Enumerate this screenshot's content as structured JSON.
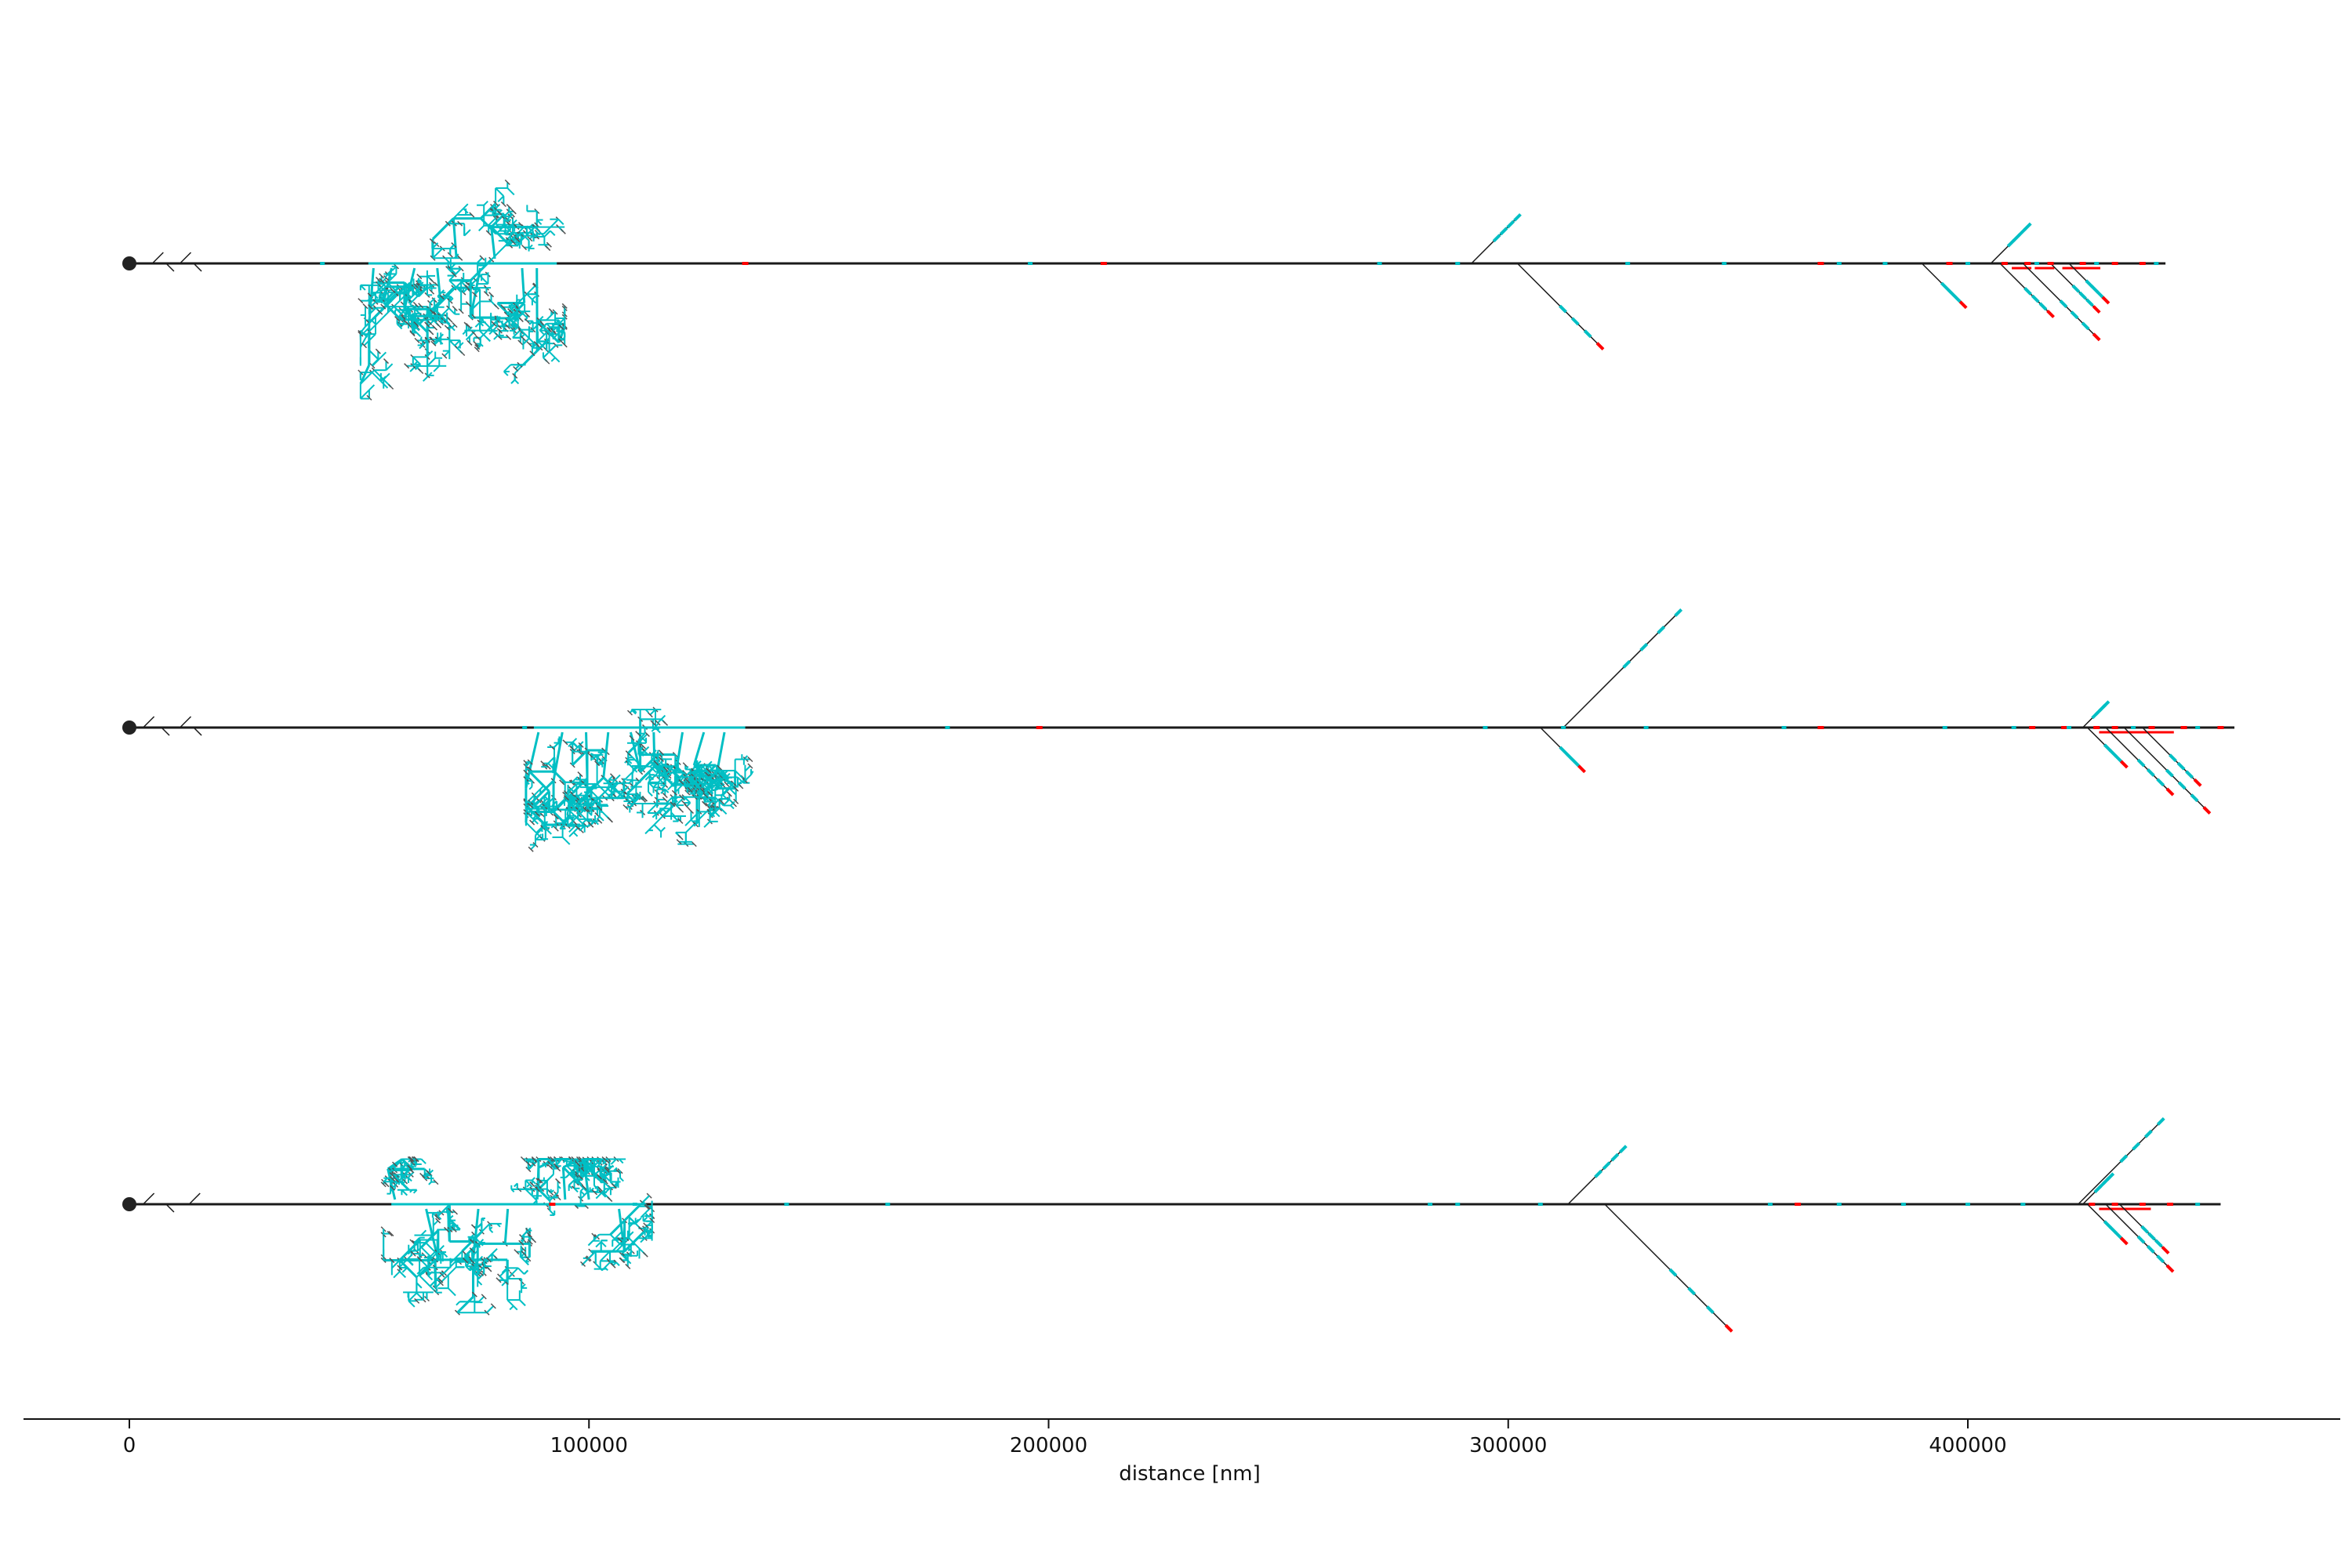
{
  "chart_data": {
    "type": "dendrogram",
    "xlabel": "distance [nm]",
    "xlim": [
      -24000,
      480000
    ],
    "x_ticks": [
      0,
      100000,
      200000,
      300000,
      400000
    ],
    "x_tick_labels": [
      "0",
      "100000",
      "200000",
      "300000",
      "400000"
    ],
    "colors": {
      "axon": "#1a1a1a",
      "dendrite_cluster": "#00bfc4",
      "marker_red": "#ff0000",
      "marker_cyan": "#00bfc4",
      "root": "#222222"
    },
    "neurons": [
      {
        "main_length": 443000,
        "root_marker": true,
        "near_soma_ticks": [
          5000,
          8000,
          11000,
          14000
        ],
        "dendrite_cluster": {
          "x_start": 52000,
          "x_end": 93000,
          "extent_up": 0.45,
          "extent_down": 0.75
        },
        "branches": [
          {
            "x": 292000,
            "length": 10000,
            "dir": "up"
          },
          {
            "x": 302000,
            "length": 18000,
            "dir": "down"
          },
          {
            "x": 390000,
            "length": 9000,
            "dir": "down"
          },
          {
            "x": 405000,
            "length": 8000,
            "dir": "up"
          },
          {
            "x": 407000,
            "length": 11000,
            "dir": "down"
          },
          {
            "x": 412000,
            "length": 16000,
            "dir": "down"
          },
          {
            "x": 418000,
            "length": 10000,
            "dir": "down"
          },
          {
            "x": 422000,
            "length": 8000,
            "dir": "down"
          }
        ],
        "red_marks": [
          134000,
          212000,
          368000,
          396000,
          408000,
          413000,
          418000,
          425000,
          432000,
          438000
        ],
        "cyan_marks": [
          42000,
          196000,
          272000,
          289000,
          326000,
          347000,
          372000,
          382000,
          400000,
          415000,
          428000,
          441000
        ]
      },
      {
        "main_length": 458000,
        "root_marker": true,
        "near_soma_ticks": [
          3000,
          7000,
          11000,
          14000
        ],
        "dendrite_cluster": {
          "x_start": 88000,
          "x_end": 134000,
          "extent_up": 0.1,
          "extent_down": 0.9
        },
        "branches": [
          {
            "x": 312000,
            "length": 25000,
            "dir": "up"
          },
          {
            "x": 307000,
            "length": 9000,
            "dir": "down"
          },
          {
            "x": 425000,
            "length": 5000,
            "dir": "up"
          },
          {
            "x": 426000,
            "length": 8000,
            "dir": "down"
          },
          {
            "x": 430000,
            "length": 14000,
            "dir": "down"
          },
          {
            "x": 434000,
            "length": 18000,
            "dir": "down"
          },
          {
            "x": 438000,
            "length": 12000,
            "dir": "down"
          }
        ],
        "red_marks": [
          198000,
          368000,
          414000,
          421000,
          428000,
          432000,
          440000,
          447000,
          455000
        ],
        "cyan_marks": [
          86000,
          178000,
          295000,
          312000,
          330000,
          360000,
          395000,
          410000,
          422000,
          436000,
          450000
        ]
      },
      {
        "main_length": 455000,
        "root_marker": true,
        "near_soma_ticks": [
          3000,
          8000,
          13000
        ],
        "dendrite_cluster": {
          "x_start": 57000,
          "x_end": 112000,
          "extent_up": 0.25,
          "extent_down": 0.85
        },
        "branches": [
          {
            "x": 313000,
            "length": 12000,
            "dir": "up"
          },
          {
            "x": 321000,
            "length": 27000,
            "dir": "down"
          },
          {
            "x": 424000,
            "length": 18000,
            "dir": "up"
          },
          {
            "x": 425000,
            "length": 6000,
            "dir": "up"
          },
          {
            "x": 426000,
            "length": 8000,
            "dir": "down"
          },
          {
            "x": 430000,
            "length": 14000,
            "dir": "down"
          },
          {
            "x": 433000,
            "length": 10000,
            "dir": "down"
          }
        ],
        "red_marks": [
          92000,
          363000,
          427000,
          432000,
          438000,
          444000
        ],
        "cyan_marks": [
          110000,
          143000,
          165000,
          283000,
          289000,
          307000,
          357000,
          372000,
          386000,
          400000,
          412000,
          450000
        ]
      }
    ]
  }
}
